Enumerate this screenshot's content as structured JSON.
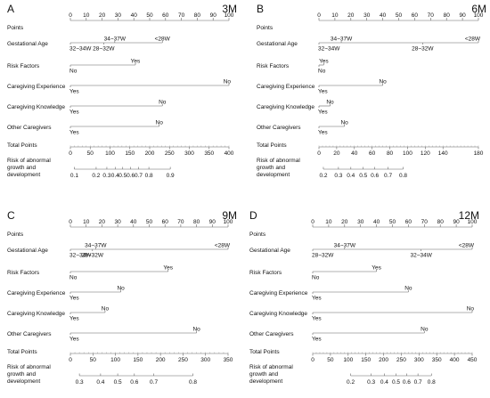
{
  "chart_data": [
    {
      "type": "nomogram",
      "panel_letter": "A",
      "timepoint": "3M",
      "points_scale": {
        "label": "Points",
        "min": 0,
        "max": 100,
        "ticks": [
          0,
          10,
          20,
          30,
          40,
          50,
          60,
          70,
          80,
          90,
          100
        ]
      },
      "variables": [
        {
          "label": "Gestational Age",
          "line": [
            0,
            58
          ],
          "levels": [
            {
              "label": "34~37W",
              "points": 28,
              "pos": "above"
            },
            {
              "label": "<28W",
              "points": 58,
              "pos": "above"
            },
            {
              "label": "32~34W",
              "points": 0,
              "pos": "below"
            },
            {
              "label": "28~32W",
              "points": 21,
              "pos": "below"
            }
          ]
        },
        {
          "label": "Risk Factors",
          "line": [
            0,
            41
          ],
          "levels": [
            {
              "label": "Yes",
              "points": 41,
              "pos": "above"
            },
            {
              "label": "No",
              "points": 0,
              "pos": "below"
            }
          ]
        },
        {
          "label": "Caregiving Experience",
          "line": [
            0,
            100
          ],
          "levels": [
            {
              "label": "No",
              "points": 100,
              "pos": "above"
            },
            {
              "label": "Yes",
              "points": 0,
              "pos": "below"
            }
          ]
        },
        {
          "label": "Caregiving Knowledge",
          "line": [
            0,
            58
          ],
          "levels": [
            {
              "label": "No",
              "points": 58,
              "pos": "above"
            },
            {
              "label": "Yes",
              "points": 0,
              "pos": "below"
            }
          ]
        },
        {
          "label": "Other Caregivers",
          "line": [
            0,
            56
          ],
          "levels": [
            {
              "label": "No",
              "points": 56,
              "pos": "above"
            },
            {
              "label": "Yes",
              "points": 0,
              "pos": "below"
            }
          ]
        }
      ],
      "total_scale": {
        "label": "Total Points",
        "min": 0,
        "max": 400,
        "ticks": [
          0,
          50,
          100,
          150,
          200,
          250,
          300,
          350,
          400
        ]
      },
      "risk_scale": {
        "label": [
          "Risk of abnormal",
          "growth and",
          "development"
        ],
        "ticks": [
          {
            "value": 0.1,
            "total": 10
          },
          {
            "value": 0.2,
            "total": 65
          },
          {
            "value": 0.3,
            "total": 92
          },
          {
            "value": 0.4,
            "total": 113
          },
          {
            "value": 0.5,
            "total": 132
          },
          {
            "value": 0.6,
            "total": 152
          },
          {
            "value": 0.7,
            "total": 172
          },
          {
            "value": 0.8,
            "total": 198
          },
          {
            "value": 0.9,
            "total": 252
          }
        ]
      }
    },
    {
      "type": "nomogram",
      "panel_letter": "B",
      "timepoint": "6M",
      "points_scale": {
        "label": "Points",
        "min": 0,
        "max": 100,
        "ticks": [
          0,
          10,
          20,
          30,
          40,
          50,
          60,
          70,
          80,
          90,
          100
        ]
      },
      "variables": [
        {
          "label": "Gestational Age",
          "line": [
            0,
            100
          ],
          "levels": [
            {
              "label": "34~37W",
              "points": 14,
              "pos": "above"
            },
            {
              "label": "<28W",
              "points": 100,
              "pos": "above"
            },
            {
              "label": "32~34W",
              "points": 0,
              "pos": "below"
            },
            {
              "label": "28~32W",
              "points": 65,
              "pos": "below"
            }
          ]
        },
        {
          "label": "Risk Factors",
          "line": [
            0,
            3
          ],
          "levels": [
            {
              "label": "Yes",
              "points": 3,
              "pos": "above"
            },
            {
              "label": "No",
              "points": 0,
              "pos": "below"
            }
          ]
        },
        {
          "label": "Caregiving Experience",
          "line": [
            0,
            40
          ],
          "levels": [
            {
              "label": "No",
              "points": 40,
              "pos": "above"
            },
            {
              "label": "Yes",
              "points": 0,
              "pos": "below"
            }
          ]
        },
        {
          "label": "Caregiving Knowledge",
          "line": [
            0,
            7
          ],
          "levels": [
            {
              "label": "No",
              "points": 7,
              "pos": "above"
            },
            {
              "label": "Yes",
              "points": 0,
              "pos": "below"
            }
          ]
        },
        {
          "label": "Other Caregivers",
          "line": [
            0,
            16
          ],
          "levels": [
            {
              "label": "No",
              "points": 16,
              "pos": "above"
            },
            {
              "label": "Yes",
              "points": 0,
              "pos": "below"
            }
          ]
        }
      ],
      "total_scale": {
        "label": "Total Points",
        "min": 0,
        "max": 180,
        "ticks": [
          0,
          20,
          40,
          60,
          80,
          100,
          120,
          140,
          180
        ]
      },
      "risk_scale": {
        "label": [
          "Risk of abnormal",
          "growth and",
          "development"
        ],
        "ticks": [
          {
            "value": 0.2,
            "total": 5
          },
          {
            "value": 0.3,
            "total": 22
          },
          {
            "value": 0.4,
            "total": 36
          },
          {
            "value": 0.5,
            "total": 50
          },
          {
            "value": 0.6,
            "total": 63
          },
          {
            "value": 0.7,
            "total": 78
          },
          {
            "value": 0.8,
            "total": 95
          }
        ]
      }
    },
    {
      "type": "nomogram",
      "panel_letter": "C",
      "timepoint": "9M",
      "points_scale": {
        "label": "Points",
        "min": 0,
        "max": 100,
        "ticks": [
          0,
          10,
          20,
          30,
          40,
          50,
          60,
          70,
          80,
          90,
          100
        ]
      },
      "variables": [
        {
          "label": "Gestational Age",
          "line": [
            0,
            100
          ],
          "levels": [
            {
              "label": "34~37W",
              "points": 16,
              "pos": "above"
            },
            {
              "label": "<28W",
              "points": 100,
              "pos": "above"
            },
            {
              "label": "32~34W",
              "points": 0,
              "pos": "below"
            },
            {
              "label": "28~32W",
              "points": 14,
              "pos": "below"
            }
          ]
        },
        {
          "label": "Risk Factors",
          "line": [
            0,
            62
          ],
          "levels": [
            {
              "label": "Yes",
              "points": 62,
              "pos": "above"
            },
            {
              "label": "No",
              "points": 0,
              "pos": "below"
            }
          ]
        },
        {
          "label": "Caregiving Experience",
          "line": [
            0,
            32
          ],
          "levels": [
            {
              "label": "No",
              "points": 32,
              "pos": "above"
            },
            {
              "label": "Yes",
              "points": 0,
              "pos": "below"
            }
          ]
        },
        {
          "label": "Caregiving Knowledge",
          "line": [
            0,
            22
          ],
          "levels": [
            {
              "label": "No",
              "points": 22,
              "pos": "above"
            },
            {
              "label": "Yes",
              "points": 0,
              "pos": "below"
            }
          ]
        },
        {
          "label": "Other Caregivers",
          "line": [
            0,
            80
          ],
          "levels": [
            {
              "label": "No",
              "points": 80,
              "pos": "above"
            },
            {
              "label": "Yes",
              "points": 0,
              "pos": "below"
            }
          ]
        }
      ],
      "total_scale": {
        "label": "Total Points",
        "min": 0,
        "max": 350,
        "ticks": [
          0,
          50,
          100,
          150,
          200,
          250,
          300,
          350
        ]
      },
      "risk_scale": {
        "label": [
          "Risk of abnormal",
          "growth and",
          "development"
        ],
        "ticks": [
          {
            "value": 0.3,
            "total": 20
          },
          {
            "value": 0.4,
            "total": 67
          },
          {
            "value": 0.5,
            "total": 105
          },
          {
            "value": 0.6,
            "total": 142
          },
          {
            "value": 0.7,
            "total": 185
          },
          {
            "value": 0.8,
            "total": 272
          }
        ]
      }
    },
    {
      "type": "nomogram",
      "panel_letter": "D",
      "timepoint": "12M",
      "points_scale": {
        "label": "Points",
        "min": 0,
        "max": 100,
        "ticks": [
          0,
          10,
          20,
          30,
          40,
          50,
          60,
          70,
          80,
          90,
          100
        ]
      },
      "variables": [
        {
          "label": "Gestational Age",
          "line": [
            0,
            100
          ],
          "levels": [
            {
              "label": "34~37W",
              "points": 20,
              "pos": "above"
            },
            {
              "label": "<28W",
              "points": 100,
              "pos": "above"
            },
            {
              "label": "28~32W",
              "points": 0,
              "pos": "below"
            },
            {
              "label": "32~34W",
              "points": 68,
              "pos": "below"
            }
          ]
        },
        {
          "label": "Risk Factors",
          "line": [
            0,
            40
          ],
          "levels": [
            {
              "label": "Yes",
              "points": 40,
              "pos": "above"
            },
            {
              "label": "No",
              "points": 0,
              "pos": "below"
            }
          ]
        },
        {
          "label": "Caregiving Experience",
          "line": [
            0,
            60
          ],
          "levels": [
            {
              "label": "No",
              "points": 60,
              "pos": "above"
            },
            {
              "label": "Yes",
              "points": 0,
              "pos": "below"
            }
          ]
        },
        {
          "label": "Caregiving Knowledge",
          "line": [
            0,
            100
          ],
          "levels": [
            {
              "label": "No",
              "points": 100,
              "pos": "above"
            },
            {
              "label": "Yes",
              "points": 0,
              "pos": "below"
            }
          ]
        },
        {
          "label": "Other Caregivers",
          "line": [
            0,
            70
          ],
          "levels": [
            {
              "label": "No",
              "points": 70,
              "pos": "above"
            },
            {
              "label": "Yes",
              "points": 0,
              "pos": "below"
            }
          ]
        }
      ],
      "total_scale": {
        "label": "Total Points",
        "min": 0,
        "max": 450,
        "ticks": [
          0,
          50,
          100,
          150,
          200,
          250,
          300,
          350,
          400,
          450
        ]
      },
      "risk_scale": {
        "label": [
          "Risk of abnormal",
          "growth and",
          "development"
        ],
        "ticks": [
          {
            "value": 0.2,
            "total": 107
          },
          {
            "value": 0.3,
            "total": 165
          },
          {
            "value": 0.4,
            "total": 202
          },
          {
            "value": 0.5,
            "total": 235
          },
          {
            "value": 0.6,
            "total": 265
          },
          {
            "value": 0.7,
            "total": 297
          },
          {
            "value": 0.8,
            "total": 335
          }
        ]
      }
    }
  ]
}
